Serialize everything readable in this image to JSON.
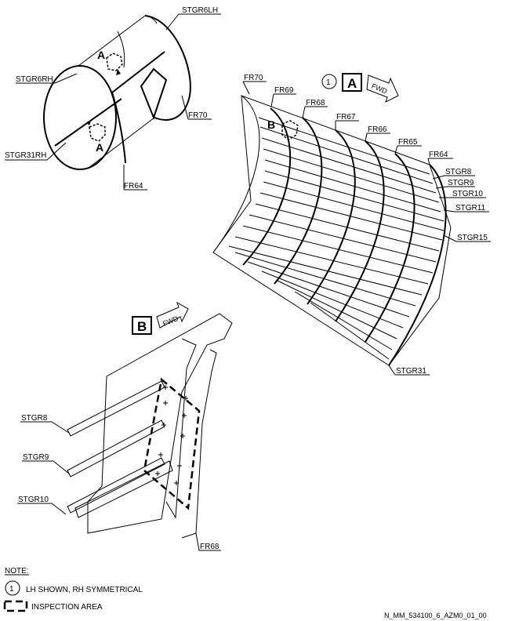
{
  "cylinder": {
    "labels": {
      "stgr6lh": "STGR6LH",
      "stgr6rh": "STGR6RH",
      "stgr31rh": "STGR31RH",
      "fr70": "FR70",
      "fr64": "FR64"
    },
    "view_a_letters": [
      "A",
      "A"
    ]
  },
  "view_a": {
    "note_number": "1",
    "view_letter": "A",
    "fwd_label": "FWD",
    "b_marker": "B",
    "frames": [
      "FR70",
      "FR69",
      "FR68",
      "FR67",
      "FR66",
      "FR65",
      "FR64"
    ],
    "stringers": [
      "STGR8",
      "STGR9",
      "STGR10",
      "STGR11",
      "STGR15",
      "STGR31"
    ]
  },
  "view_b": {
    "view_letter": "B",
    "fwd_label": "FWD",
    "stringers": [
      "STGR8",
      "STGR9",
      "STGR10"
    ],
    "frame": "FR68"
  },
  "notes": {
    "title": "NOTE:",
    "item1_number": "1",
    "item1_text": "LH SHOWN, RH SYMMETRICAL",
    "legend_text": "INSPECTION AREA"
  },
  "figure_id": "N_MM_534100_6_AZM0_01_00"
}
